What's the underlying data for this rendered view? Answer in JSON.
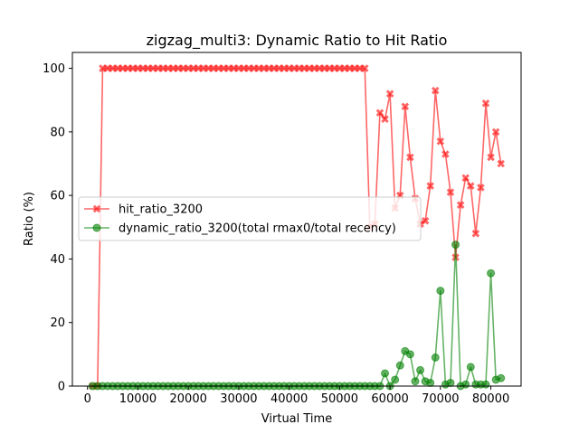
{
  "chart_data": {
    "type": "line",
    "title": "zigzag_multi3: Dynamic Ratio to Hit Ratio",
    "xlabel": "Virtual Time",
    "ylabel": "Ratio (%)",
    "xlim": [
      -3000,
      86000
    ],
    "ylim": [
      0,
      105
    ],
    "xticks": [
      0,
      10000,
      20000,
      30000,
      40000,
      50000,
      60000,
      70000,
      80000
    ],
    "yticks": [
      0,
      20,
      40,
      60,
      80,
      100
    ],
    "grid": false,
    "legend_position": "center-left",
    "series": [
      {
        "name": "hit_ratio_3200",
        "color": "#ff0000",
        "marker": "X",
        "x": [
          1000,
          2000,
          3000,
          4000,
          5000,
          6000,
          7000,
          8000,
          9000,
          10000,
          11000,
          12000,
          13000,
          14000,
          15000,
          16000,
          17000,
          18000,
          19000,
          20000,
          21000,
          22000,
          23000,
          24000,
          25000,
          26000,
          27000,
          28000,
          29000,
          30000,
          31000,
          32000,
          33000,
          34000,
          35000,
          36000,
          37000,
          38000,
          39000,
          40000,
          41000,
          42000,
          43000,
          44000,
          45000,
          46000,
          47000,
          48000,
          49000,
          50000,
          51000,
          52000,
          53000,
          54000,
          55000,
          56000,
          57000,
          58000,
          59000,
          60000,
          61000,
          62000,
          63000,
          64000,
          65000,
          66000,
          67000,
          68000,
          69000,
          70000,
          71000,
          72000,
          73000,
          74000,
          75000,
          76000,
          77000,
          78000,
          79000,
          80000,
          81000,
          82000
        ],
        "values": [
          0,
          0,
          100,
          100,
          100,
          100,
          100,
          100,
          100,
          100,
          100,
          100,
          100,
          100,
          100,
          100,
          100,
          100,
          100,
          100,
          100,
          100,
          100,
          100,
          100,
          100,
          100,
          100,
          100,
          100,
          100,
          100,
          100,
          100,
          100,
          100,
          100,
          100,
          100,
          100,
          100,
          100,
          100,
          100,
          100,
          100,
          100,
          100,
          100,
          100,
          100,
          100,
          100,
          100,
          100,
          50,
          51,
          86,
          84,
          92,
          56,
          60,
          88,
          72,
          59,
          51,
          52,
          63,
          93,
          77,
          73,
          61,
          40.5,
          57,
          65.5,
          63,
          48,
          62.5,
          89,
          72,
          80,
          70
        ]
      },
      {
        "name": "dynamic_ratio_3200(total rmax0/total recency)",
        "color": "#008000",
        "marker": "o",
        "x": [
          1000,
          2000,
          3000,
          4000,
          5000,
          6000,
          7000,
          8000,
          9000,
          10000,
          11000,
          12000,
          13000,
          14000,
          15000,
          16000,
          17000,
          18000,
          19000,
          20000,
          21000,
          22000,
          23000,
          24000,
          25000,
          26000,
          27000,
          28000,
          29000,
          30000,
          31000,
          32000,
          33000,
          34000,
          35000,
          36000,
          37000,
          38000,
          39000,
          40000,
          41000,
          42000,
          43000,
          44000,
          45000,
          46000,
          47000,
          48000,
          49000,
          50000,
          51000,
          52000,
          53000,
          54000,
          55000,
          56000,
          57000,
          58000,
          59000,
          60000,
          61000,
          62000,
          63000,
          64000,
          65000,
          66000,
          67000,
          68000,
          69000,
          70000,
          71000,
          72000,
          73000,
          74000,
          75000,
          76000,
          77000,
          78000,
          79000,
          80000,
          81000,
          82000
        ],
        "values": [
          0,
          0,
          0,
          0,
          0,
          0,
          0,
          0,
          0,
          0,
          0,
          0,
          0,
          0,
          0,
          0,
          0,
          0,
          0,
          0,
          0,
          0,
          0,
          0,
          0,
          0,
          0,
          0,
          0,
          0,
          0,
          0,
          0,
          0,
          0,
          0,
          0,
          0,
          0,
          0,
          0,
          0,
          0,
          0,
          0,
          0,
          0,
          0,
          0,
          0,
          0,
          0,
          0,
          0,
          0,
          0,
          0,
          0,
          4,
          0,
          2,
          6.5,
          11,
          10,
          1.5,
          5,
          1.5,
          1,
          9,
          30,
          0.5,
          1,
          44.5,
          0,
          0.5,
          6,
          0.5,
          0.5,
          0.5,
          35.5,
          2,
          2.5
        ]
      }
    ]
  }
}
